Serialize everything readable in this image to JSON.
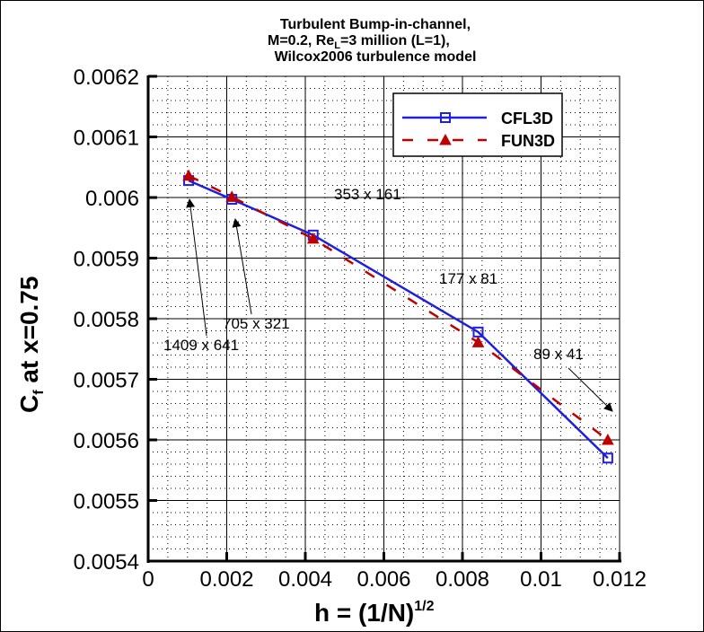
{
  "chart_data": {
    "type": "line",
    "title": "Turbulent Bump-in-channel, M=0.2, Re_L=3 million (L=1), Wilcox2006 turbulence model",
    "title_lines": [
      "Turbulent Bump-in-channel,",
      "M=0.2, Re",
      "L",
      "=3 million (L=1),",
      "Wilcox2006 turbulence model"
    ],
    "xlabel": "h = (1/N)^1/2",
    "xlabel_main": "h = (1/N)",
    "xlabel_sup": "1/2",
    "ylabel": "C_f at x=0.75",
    "ylabel_main": "C",
    "ylabel_sub": "f",
    "ylabel_rest": " at x=0.75",
    "xlim": [
      0,
      0.012
    ],
    "ylim": [
      0.0054,
      0.0062
    ],
    "xticks": [
      "0",
      "0.002",
      "0.004",
      "0.006",
      "0.008",
      "0.01",
      "0.012"
    ],
    "yticks": [
      "0.0054",
      "0.0055",
      "0.0056",
      "0.0057",
      "0.0058",
      "0.0059",
      "0.006",
      "0.0061",
      "0.0062"
    ],
    "grid": true,
    "legend_position": "upper right",
    "series": [
      {
        "name": "CFL3D",
        "color": "#1f1fdf",
        "marker": "square",
        "linestyle": "solid",
        "x": [
          0.00103,
          0.00213,
          0.0042,
          0.0084,
          0.0117
        ],
        "y": [
          0.006028,
          0.005997,
          0.005938,
          0.005778,
          0.00557
        ]
      },
      {
        "name": "FUN3D",
        "color": "#c00000",
        "marker": "triangle",
        "linestyle": "dashed",
        "x": [
          0.00103,
          0.00213,
          0.0042,
          0.0084,
          0.0117
        ],
        "y": [
          0.006036,
          0.006001,
          0.005932,
          0.005761,
          0.0056
        ]
      }
    ],
    "annotations": [
      {
        "text": "1409 x 641"
      },
      {
        "text": "705 x 321"
      },
      {
        "text": "353 x 161"
      },
      {
        "text": "177 x 81"
      },
      {
        "text": "89 x 41"
      }
    ]
  }
}
